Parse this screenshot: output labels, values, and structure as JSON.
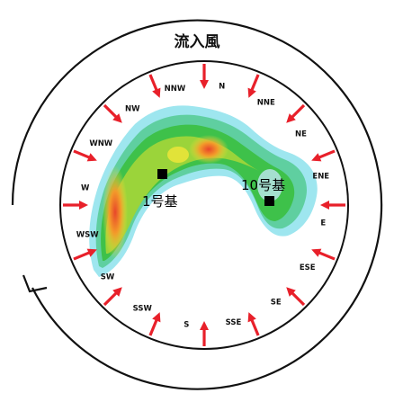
{
  "diagram": {
    "title": "流入風",
    "units": [
      {
        "label": "1号基"
      },
      {
        "label": "10号基"
      }
    ],
    "directions": [
      "N",
      "NNE",
      "NE",
      "ENE",
      "E",
      "ESE",
      "SE",
      "SSE",
      "S",
      "SSW",
      "SW",
      "WSW",
      "W",
      "WNW",
      "NW",
      "NNW"
    ],
    "colors": {
      "arrow": "#e8202a",
      "circle": "#111111",
      "terrain_low": "#6fd3e3",
      "terrain_mid": "#39c24a",
      "terrain_high": "#f3e63a",
      "terrain_peak": "#e8562a"
    }
  }
}
